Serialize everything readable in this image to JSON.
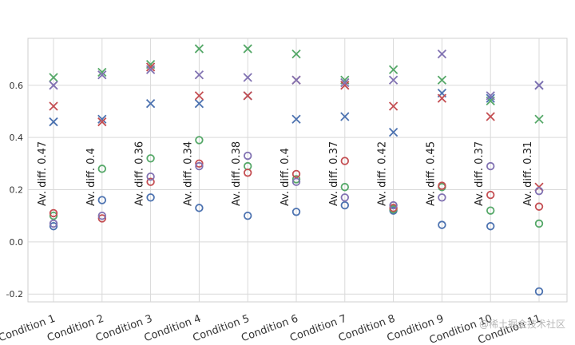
{
  "chart_data": {
    "type": "scatter",
    "categories": [
      "Condition 1",
      "Condition 2",
      "Condition 3",
      "Condition 4",
      "Condition 5",
      "Condition 6",
      "Condition 7",
      "Condition 8",
      "Condition 9",
      "Condition 10",
      "Condition 11"
    ],
    "ylim": [
      -0.23,
      0.78
    ],
    "yticks": [
      -0.2,
      0.0,
      0.2,
      0.4,
      0.6
    ],
    "grid": true,
    "colors": {
      "blue": "#4c72b0",
      "green": "#55a868",
      "red": "#c44e52",
      "purple": "#8172b2"
    },
    "annotations": [
      "Av. diff. 0.47",
      "Av. diff. 0.4",
      "Av. diff. 0.36",
      "Av. diff. 0.34",
      "Av. diff. 0.38",
      "Av. diff. 0.4",
      "Av. diff. 0.37",
      "Av. diff. 0.42",
      "Av. diff. 0.45",
      "Av. diff. 0.37",
      "Av. diff. 0.31"
    ],
    "series": [
      {
        "color": "blue",
        "marker": "x",
        "values": [
          0.46,
          0.47,
          0.53,
          0.53,
          0.56,
          0.47,
          0.48,
          0.42,
          0.57,
          0.55,
          0.6
        ]
      },
      {
        "color": "green",
        "marker": "x",
        "values": [
          0.63,
          0.65,
          0.68,
          0.74,
          0.74,
          0.72,
          0.62,
          0.66,
          0.62,
          0.54,
          0.47
        ]
      },
      {
        "color": "red",
        "marker": "x",
        "values": [
          0.52,
          0.46,
          0.67,
          0.56,
          0.56,
          0.62,
          0.6,
          0.52,
          0.55,
          0.48,
          0.21
        ]
      },
      {
        "color": "purple",
        "marker": "x",
        "values": [
          0.6,
          0.64,
          0.66,
          0.64,
          0.63,
          0.62,
          0.61,
          0.62,
          0.72,
          0.56,
          0.6
        ]
      },
      {
        "color": "blue",
        "marker": "o",
        "values": [
          0.06,
          0.16,
          0.17,
          0.13,
          0.1,
          0.115,
          0.14,
          0.12,
          0.065,
          0.06,
          -0.19
        ]
      },
      {
        "color": "green",
        "marker": "o",
        "values": [
          0.1,
          0.28,
          0.32,
          0.39,
          0.29,
          0.24,
          0.21,
          0.125,
          0.21,
          0.12,
          0.07
        ]
      },
      {
        "color": "red",
        "marker": "o",
        "values": [
          0.11,
          0.09,
          0.23,
          0.3,
          0.265,
          0.26,
          0.31,
          0.13,
          0.215,
          0.18,
          0.135
        ]
      },
      {
        "color": "purple",
        "marker": "o",
        "values": [
          0.07,
          0.1,
          0.25,
          0.29,
          0.33,
          0.23,
          0.17,
          0.14,
          0.17,
          0.29,
          0.195
        ]
      }
    ]
  },
  "watermark": "@稀土掘金技术社区"
}
